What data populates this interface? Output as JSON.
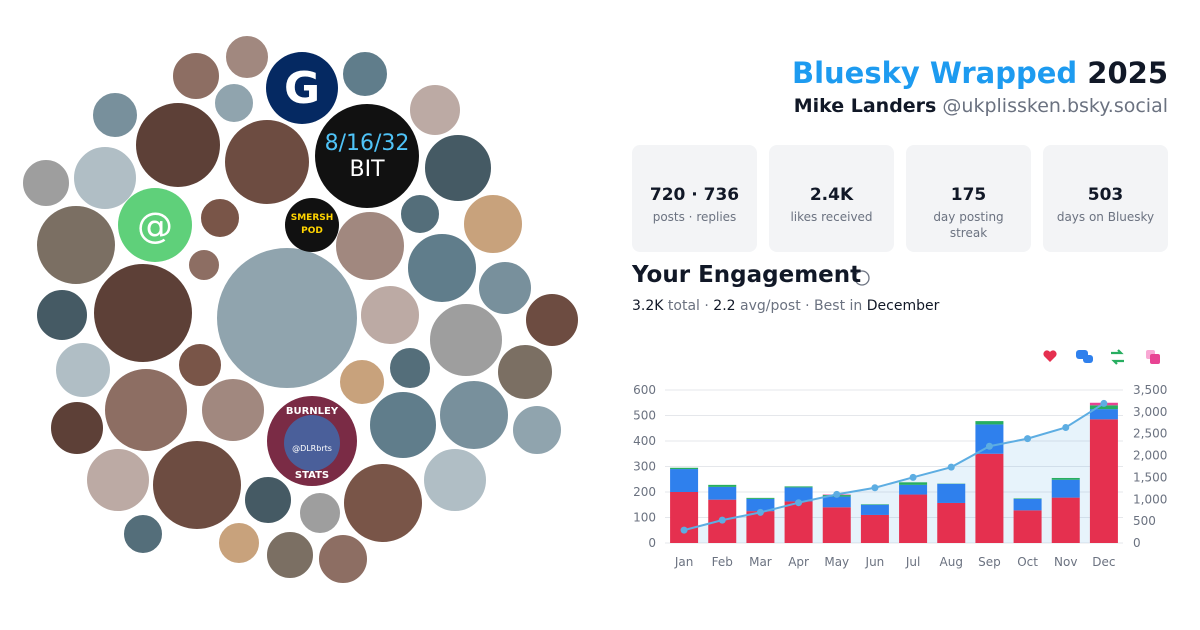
{
  "header": {
    "title": "Bluesky Wrapped",
    "year": "2025",
    "name": "Mike Landers",
    "handle": "@ukplissken.bsky.social"
  },
  "stats": [
    {
      "value": "720 · 736",
      "label": "posts · replies"
    },
    {
      "value": "2.4K",
      "label": "likes received"
    },
    {
      "value": "175",
      "label": "day posting streak"
    },
    {
      "value": "503",
      "label": "days on Bluesky"
    }
  ],
  "engagement": {
    "title": "Your Engagement",
    "summary": [
      "3.2K",
      "total ·",
      "2.2",
      "avg/post · Best in",
      "December"
    ]
  },
  "avatars": {
    "guardian": "G",
    "bit_top": "8/16/32",
    "bit_bottom": "BIT",
    "at": "@",
    "smersh_top": "SMERSH",
    "smersh_bottom": "POD",
    "burnley_top": "BURNLEY",
    "burnley_bottom": "STATS",
    "burnley_handle": "@DLRbrts"
  },
  "chart_data": {
    "type": "bar",
    "categories": [
      "Jan",
      "Feb",
      "Mar",
      "Apr",
      "May",
      "Jun",
      "Jul",
      "Aug",
      "Sep",
      "Oct",
      "Nov",
      "Dec"
    ],
    "series": [
      {
        "color": "#e5304f",
        "values": [
          200,
          170,
          125,
          163,
          140,
          110,
          190,
          157,
          350,
          128,
          178,
          485
        ]
      },
      {
        "color": "#2f80ed",
        "values": [
          90,
          50,
          48,
          55,
          42,
          40,
          38,
          75,
          115,
          45,
          70,
          40
        ]
      },
      {
        "color": "#27ae60",
        "values": [
          5,
          8,
          4,
          4,
          6,
          2,
          10,
          1,
          13,
          2,
          7,
          15
        ]
      },
      {
        "color": "#e84393",
        "values": [
          0,
          0,
          0,
          0,
          2,
          0,
          0,
          0,
          0,
          0,
          0,
          10
        ]
      },
      {
        "color": "#5dade2",
        "axis": "y2",
        "values": [
          295,
          523,
          700,
          922,
          1112,
          1264,
          1502,
          1735,
          2213,
          2388,
          2643,
          3193
        ]
      }
    ],
    "ylim": [
      0,
      600
    ],
    "yticks": [
      0,
      100,
      200,
      300,
      400,
      500,
      600
    ],
    "y2lim": [
      0,
      3500
    ],
    "y2ticks": [
      0,
      500,
      {
        "value": 1000,
        "label": "1,000"
      },
      {
        "value": 1500,
        "label": "1,500"
      },
      {
        "value": 2000,
        "label": "2,000"
      },
      {
        "value": 2500,
        "label": "2,500"
      },
      {
        "value": 3000,
        "label": "3,000"
      },
      {
        "value": 3500,
        "label": "3,500"
      }
    ],
    "grid": true
  }
}
